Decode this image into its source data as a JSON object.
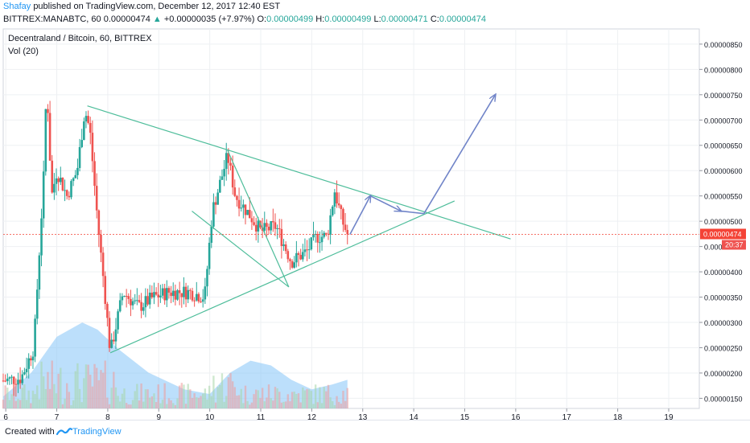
{
  "header": {
    "author": "Shafay",
    "published_text": "published on TradingView.com, December 12, 2017 12:40 EST",
    "symbol": "BITTREX:MANABTC, 60",
    "last": "0.00000474",
    "change_arrow": "▲",
    "change": "+0.00000035 (+7.97%)",
    "o_label": "O:",
    "o": "0.00000499",
    "h_label": "H:",
    "h": "0.00000499",
    "l_label": "L:",
    "l": "0.00000471",
    "c_label": "C:",
    "c": "0.00000474"
  },
  "footer": {
    "created_with": "Created with",
    "brand": "TradingView"
  },
  "chart_data": {
    "type": "candlestick",
    "title": "Decentraland / Bitcoin, 60, BITTREX",
    "indicator": "Vol (20)",
    "x_ticks": [
      "6",
      "7",
      "8",
      "9",
      "10",
      "11",
      "12",
      "13",
      "14",
      "15",
      "16",
      "17",
      "18",
      "19"
    ],
    "x_range": [
      5.95,
      19.6
    ],
    "y_ticks": [
      "0.00000150",
      "0.00000200",
      "0.00000250",
      "0.00000300",
      "0.00000350",
      "0.00000400",
      "0.00000450",
      "0.00000500",
      "0.00000550",
      "0.00000600",
      "0.00000650",
      "0.00000700",
      "0.00000750",
      "0.00000800",
      "0.00000850"
    ],
    "y_range": [
      1.3e-06,
      8.8e-06
    ],
    "last_price_label": "0.00000474",
    "countdown_label": "20:37",
    "last_price": 4.74e-06,
    "price_path": [
      [
        5.95,
        1.85e-06
      ],
      [
        6.3,
        1.9e-06
      ],
      [
        6.55,
        2.5e-06
      ],
      [
        6.75,
        6e-06
      ],
      [
        6.8,
        7.8e-06
      ],
      [
        6.9,
        5.5e-06
      ],
      [
        7.0,
        6e-06
      ],
      [
        7.2,
        5.5e-06
      ],
      [
        7.4,
        6e-06
      ],
      [
        7.55,
        7.2e-06
      ],
      [
        7.65,
        6.8e-06
      ],
      [
        7.8,
        5e-06
      ],
      [
        7.95,
        3.5e-06
      ],
      [
        8.05,
        2.4e-06
      ],
      [
        8.3,
        3.6e-06
      ],
      [
        8.6,
        3.3e-06
      ],
      [
        8.9,
        3.5e-06
      ],
      [
        9.2,
        3.6e-06
      ],
      [
        9.6,
        3.6e-06
      ],
      [
        9.9,
        3.5e-06
      ],
      [
        10.05,
        5.2e-06
      ],
      [
        10.35,
        6.3e-06
      ],
      [
        10.5,
        5.5e-06
      ],
      [
        10.8,
        5.1e-06
      ],
      [
        11.0,
        4.8e-06
      ],
      [
        11.3,
        4.9e-06
      ],
      [
        11.6,
        4.2e-06
      ],
      [
        11.9,
        4.4e-06
      ],
      [
        12.1,
        4.7e-06
      ],
      [
        12.3,
        4.7e-06
      ],
      [
        12.45,
        5.6e-06
      ],
      [
        12.6,
        5e-06
      ],
      [
        12.7,
        4.74e-06
      ]
    ],
    "volume_area": [
      [
        5.95,
        0.05
      ],
      [
        6.5,
        0.15
      ],
      [
        7.0,
        0.3
      ],
      [
        7.5,
        0.36
      ],
      [
        7.8,
        0.33
      ],
      [
        8.2,
        0.25
      ],
      [
        8.8,
        0.15
      ],
      [
        9.5,
        0.08
      ],
      [
        10.0,
        0.06
      ],
      [
        10.4,
        0.15
      ],
      [
        10.8,
        0.2
      ],
      [
        11.2,
        0.18
      ],
      [
        11.6,
        0.12
      ],
      [
        12.0,
        0.08
      ],
      [
        12.4,
        0.1
      ],
      [
        12.7,
        0.12
      ]
    ],
    "trendlines": [
      {
        "name": "upper-triangle-line",
        "points": [
          [
            7.6,
            7.28e-06
          ],
          [
            15.9,
            4.65e-06
          ]
        ]
      },
      {
        "name": "lower-triangle-line",
        "points": [
          [
            8.05,
            2.4e-06
          ],
          [
            14.8,
            5.4e-06
          ]
        ]
      },
      {
        "name": "inner-wedge-upper",
        "points": [
          [
            10.35,
            6.4e-06
          ],
          [
            11.55,
            3.7e-06
          ]
        ]
      },
      {
        "name": "inner-wedge-lower",
        "points": [
          [
            9.65,
            5.2e-06
          ],
          [
            11.55,
            3.7e-06
          ]
        ]
      }
    ],
    "projection_arrows": [
      {
        "name": "projection-up",
        "points": [
          [
            12.75,
            4.74e-06
          ],
          [
            13.15,
            5.5e-06
          ]
        ]
      },
      {
        "name": "projection-pullback",
        "points": [
          [
            13.15,
            5.5e-06
          ],
          [
            13.75,
            5.2e-06
          ]
        ]
      },
      {
        "name": "projection-breakout-start",
        "points": [
          [
            13.75,
            5.2e-06
          ],
          [
            14.2,
            5.15e-06
          ]
        ]
      },
      {
        "name": "projection-breakout",
        "points": [
          [
            14.2,
            5.15e-06
          ],
          [
            15.6,
            7.5e-06
          ]
        ]
      }
    ],
    "colors": {
      "up": "#26a69a",
      "down": "#ef5350",
      "trendline": "#4dbd9a",
      "arrow": "#7084c8",
      "volume": "#90caf9",
      "last_price": "#f44336"
    }
  }
}
